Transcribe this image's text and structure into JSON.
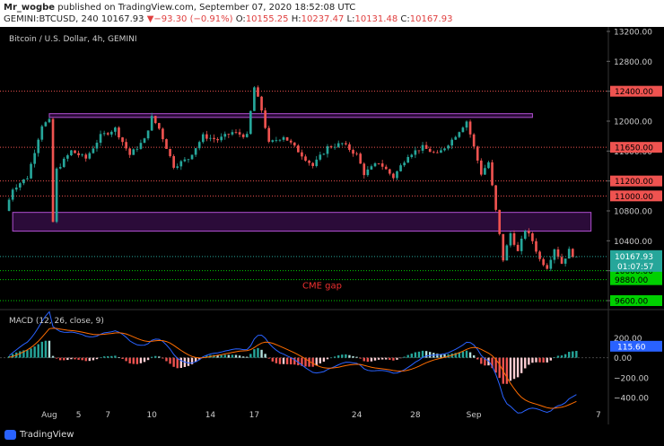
{
  "header": {
    "user": "Mr_wogbe",
    "published": "published on TradingView.com, September 07, 2020 18:52:08 UTC",
    "symbol": "GEMINI:BTCUSD, 240",
    "last": "10167.93",
    "change": "▼−93.30 (−0.91%)",
    "o_label": "O:",
    "o": "10155.25",
    "h_label": "H:",
    "h": "10237.47",
    "l_label": "L:",
    "l": "10131.48",
    "c_label": "C:",
    "c": "10167.93"
  },
  "chart_title": "Bitcoin / U.S. Dollar, 4h, GEMINI",
  "colors": {
    "up": "#26a69a",
    "down": "#ef5350",
    "zone": "#7b1fa2",
    "macd": "#2962ff",
    "signal": "#ff6d00"
  },
  "chart_data": [
    {
      "type": "candlestick",
      "ylim": [
        9600,
        13200
      ],
      "y_ticks": [
        "13200.00",
        "12800.00",
        "12400.00",
        "12000.00",
        "11600.00",
        "11200.00",
        "10800.00",
        "10400.00",
        "10000.00",
        "9600.00"
      ],
      "x_labels": [
        {
          "label": "Aug",
          "day": 6
        },
        {
          "label": "5",
          "day": 10
        },
        {
          "label": "7",
          "day": 14
        },
        {
          "label": "10",
          "day": 20
        },
        {
          "label": "14",
          "day": 28
        },
        {
          "label": "17",
          "day": 34
        },
        {
          "label": "24",
          "day": 48
        },
        {
          "label": "28",
          "day": 56
        },
        {
          "label": "Sep",
          "day": 64
        },
        {
          "label": "7",
          "day": 81
        }
      ],
      "anchors": [
        [
          0,
          10800
        ],
        [
          1,
          11100
        ],
        [
          3,
          11250
        ],
        [
          5,
          11950
        ],
        [
          6,
          12000
        ],
        [
          6.5,
          10650
        ],
        [
          7,
          11350
        ],
        [
          9,
          11600
        ],
        [
          11,
          11500
        ],
        [
          13,
          11800
        ],
        [
          15,
          11900
        ],
        [
          17,
          11550
        ],
        [
          19,
          11750
        ],
        [
          20,
          12050
        ],
        [
          21,
          11900
        ],
        [
          23,
          11400
        ],
        [
          25,
          11500
        ],
        [
          27,
          11800
        ],
        [
          29,
          11750
        ],
        [
          31,
          11850
        ],
        [
          33,
          11800
        ],
        [
          34,
          12450
        ],
        [
          35,
          12150
        ],
        [
          36,
          11700
        ],
        [
          38,
          11800
        ],
        [
          40,
          11600
        ],
        [
          42,
          11400
        ],
        [
          44,
          11650
        ],
        [
          46,
          11700
        ],
        [
          48,
          11550
        ],
        [
          49,
          11300
        ],
        [
          51,
          11450
        ],
        [
          53,
          11250
        ],
        [
          55,
          11550
        ],
        [
          57,
          11650
        ],
        [
          59,
          11550
        ],
        [
          61,
          11750
        ],
        [
          63,
          12000
        ],
        [
          64,
          11650
        ],
        [
          65,
          11300
        ],
        [
          66,
          11450
        ],
        [
          67,
          10800
        ],
        [
          68,
          10150
        ],
        [
          69,
          10500
        ],
        [
          70,
          10250
        ],
        [
          71,
          10550
        ],
        [
          72,
          10400
        ],
        [
          73,
          10150
        ],
        [
          74,
          10050
        ],
        [
          75,
          10300
        ],
        [
          76,
          10100
        ],
        [
          77,
          10270
        ],
        [
          78,
          10160
        ]
      ],
      "hlines": [
        {
          "price": 12400,
          "label": "12400.00",
          "color": "#ef5350"
        },
        {
          "price": 11650,
          "label": "11650.00",
          "color": "#ef5350"
        },
        {
          "price": 11200,
          "label": "11200.00",
          "color": "#ef5350"
        },
        {
          "price": 11000,
          "label": "11000.00",
          "color": "#ef5350"
        },
        {
          "price": 10000,
          "label": "10000.00",
          "color": "#00d000"
        },
        {
          "price": 9880,
          "label": "9880.00",
          "color": "#00d000"
        },
        {
          "price": 9600,
          "label": "9600.00",
          "color": "#00d000"
        }
      ],
      "zones": [
        {
          "from_day": 6,
          "to_day": 72,
          "low": 12050,
          "high": 12100
        },
        {
          "from_day": 1,
          "to_day": 80,
          "low": 10530,
          "high": 10780
        }
      ],
      "current_price": "10167.93",
      "countdown": "01:07:57",
      "annotation": "CME gap"
    },
    {
      "type": "macd",
      "title": "MACD (12, 26, close, 9)",
      "ylim": [
        -480,
        420
      ],
      "y_ticks": [
        "200.00",
        "0.00",
        "−200.00",
        "−400.00"
      ],
      "current_value": "115.60"
    }
  ],
  "footer": {
    "brand": "TradingView"
  }
}
